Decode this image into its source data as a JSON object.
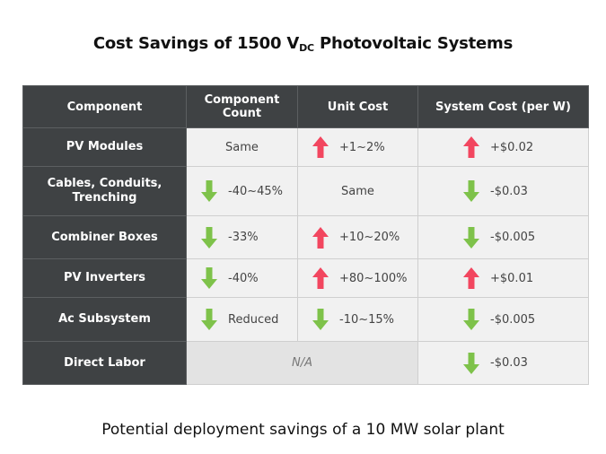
{
  "title": {
    "main": "Cost Savings of 1500 V",
    "sub": "DC",
    "rest": " Photovoltaic Systems"
  },
  "headers": [
    "Component",
    "Component Count",
    "Unit Cost",
    "System Cost (per W)"
  ],
  "rows": [
    {
      "name": "PV Modules",
      "count": {
        "dir": "none",
        "text": "Same"
      },
      "unit": {
        "dir": "up",
        "text": "+1~2%"
      },
      "system": {
        "dir": "up",
        "text": "+$0.02"
      }
    },
    {
      "name": "Cables, Conduits, Trenching",
      "count": {
        "dir": "down",
        "text": "-40~45%"
      },
      "unit": {
        "dir": "none",
        "text": "Same"
      },
      "system": {
        "dir": "down",
        "text": "-$0.03"
      }
    },
    {
      "name": "Combiner Boxes",
      "count": {
        "dir": "down",
        "text": "-33%"
      },
      "unit": {
        "dir": "up",
        "text": "+10~20%"
      },
      "system": {
        "dir": "down",
        "text": "-$0.005"
      }
    },
    {
      "name": "PV Inverters",
      "count": {
        "dir": "down",
        "text": "-40%"
      },
      "unit": {
        "dir": "up",
        "text": "+80~100%"
      },
      "system": {
        "dir": "up",
        "text": "+$0.01"
      }
    },
    {
      "name": "Ac Subsystem",
      "count": {
        "dir": "down",
        "text": "Reduced"
      },
      "unit": {
        "dir": "down",
        "text": "-10~15%"
      },
      "system": {
        "dir": "down",
        "text": "-$0.005"
      }
    },
    {
      "name": "Direct Labor",
      "merged": "N/A",
      "system": {
        "dir": "down",
        "text": "-$0.03"
      }
    }
  ],
  "footer": "Potential deployment savings of a 10 MW solar plant",
  "colors": {
    "up": "#f2465f",
    "down": "#7ec24a",
    "header_bg": "#3f4244",
    "cell_bg": "#f1f1f1"
  }
}
